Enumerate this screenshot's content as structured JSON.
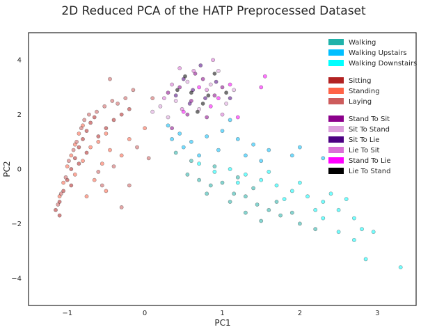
{
  "chart_data": {
    "type": "scatter",
    "title": "2D Reduced PCA of the HATP Preprocessed Dataset",
    "xlabel": "PC1",
    "ylabel": "PC2",
    "xlim": [
      -1.5,
      3.5
    ],
    "ylim": [
      -5,
      5
    ],
    "xticks": [
      -1,
      0,
      1,
      2,
      3
    ],
    "yticks": [
      -4,
      -2,
      0,
      2,
      4
    ],
    "grid": false,
    "legend_position": "top-right",
    "legend_groups": [
      [
        "Walking",
        "Walking Upstairs",
        "Walking Downstairs"
      ],
      [
        "Sitting",
        "Standing",
        "Laying"
      ],
      [
        "Stand To Sit",
        "Sit To Stand",
        "Sit To Lie",
        "Lie To Sit",
        "Stand To Lie",
        "Lie To Stand"
      ]
    ],
    "series": [
      {
        "name": "Walking",
        "color": "#20b2aa",
        "points": [
          [
            0.55,
            -0.2
          ],
          [
            0.7,
            -0.4
          ],
          [
            0.85,
            -0.6
          ],
          [
            1.0,
            -0.5
          ],
          [
            1.15,
            -0.9
          ],
          [
            1.3,
            -1.0
          ],
          [
            1.45,
            -1.3
          ],
          [
            1.6,
            -1.5
          ],
          [
            1.75,
            -1.7
          ],
          [
            0.6,
            0.3
          ],
          [
            0.9,
            0.1
          ],
          [
            1.2,
            -0.3
          ],
          [
            1.4,
            -0.7
          ],
          [
            1.7,
            -1.2
          ],
          [
            1.9,
            -1.6
          ],
          [
            0.4,
            0.6
          ],
          [
            0.8,
            -0.9
          ],
          [
            1.1,
            -1.2
          ],
          [
            1.3,
            -1.6
          ],
          [
            1.5,
            -1.9
          ],
          [
            2.0,
            -2.0
          ],
          [
            2.2,
            -2.2
          ]
        ]
      },
      {
        "name": "Walking Upstairs",
        "color": "#00bfff",
        "points": [
          [
            0.3,
            1.6
          ],
          [
            0.45,
            1.3
          ],
          [
            0.6,
            1.0
          ],
          [
            0.8,
            1.2
          ],
          [
            1.0,
            1.4
          ],
          [
            1.2,
            1.1
          ],
          [
            1.4,
            0.9
          ],
          [
            1.6,
            0.7
          ],
          [
            1.9,
            0.5
          ],
          [
            0.5,
            0.8
          ],
          [
            0.7,
            0.5
          ],
          [
            0.95,
            0.7
          ],
          [
            1.3,
            0.5
          ],
          [
            1.5,
            0.3
          ],
          [
            2.0,
            0.8
          ],
          [
            2.3,
            0.4
          ],
          [
            1.1,
            1.8
          ],
          [
            0.35,
            1.1
          ]
        ]
      },
      {
        "name": "Walking Downstairs",
        "color": "#00ffff",
        "points": [
          [
            0.7,
            0.2
          ],
          [
            0.9,
            -0.1
          ],
          [
            1.1,
            0.0
          ],
          [
            1.3,
            -0.2
          ],
          [
            1.5,
            -0.4
          ],
          [
            1.7,
            -0.6
          ],
          [
            1.9,
            -0.8
          ],
          [
            2.1,
            -1.0
          ],
          [
            2.3,
            -1.2
          ],
          [
            2.5,
            -1.5
          ],
          [
            2.7,
            -1.8
          ],
          [
            2.8,
            -2.2
          ],
          [
            2.95,
            -2.3
          ],
          [
            2.7,
            -2.6
          ],
          [
            2.85,
            -3.3
          ],
          [
            3.3,
            -3.6
          ],
          [
            2.5,
            -2.3
          ],
          [
            2.3,
            -1.8
          ],
          [
            1.8,
            -1.1
          ],
          [
            1.2,
            -0.5
          ],
          [
            1.6,
            -0.1
          ],
          [
            2.0,
            -0.5
          ],
          [
            2.4,
            -0.9
          ],
          [
            2.6,
            -1.1
          ],
          [
            2.2,
            -1.5
          ]
        ]
      },
      {
        "name": "Sitting",
        "color": "#b22222",
        "points": [
          [
            -1.1,
            -1.2
          ],
          [
            -1.05,
            -0.8
          ],
          [
            -1.0,
            -0.4
          ],
          [
            -0.95,
            0.0
          ],
          [
            -0.9,
            0.4
          ],
          [
            -0.85,
            0.8
          ],
          [
            -0.8,
            1.1
          ],
          [
            -0.75,
            1.4
          ],
          [
            -0.7,
            1.7
          ],
          [
            -0.65,
            1.9
          ],
          [
            -1.15,
            -1.5
          ],
          [
            -1.1,
            -1.7
          ],
          [
            -0.95,
            -0.6
          ],
          [
            -0.85,
            0.2
          ],
          [
            -0.75,
            0.6
          ],
          [
            -0.6,
            1.2
          ],
          [
            -0.5,
            1.5
          ],
          [
            -0.4,
            1.8
          ],
          [
            -0.3,
            2.0
          ],
          [
            -0.2,
            2.2
          ]
        ]
      },
      {
        "name": "Standing",
        "color": "#ff6347",
        "points": [
          [
            -1.1,
            -1.0
          ],
          [
            -1.05,
            -0.5
          ],
          [
            -1.0,
            0.1
          ],
          [
            -0.95,
            0.5
          ],
          [
            -0.9,
            0.9
          ],
          [
            -0.85,
            1.3
          ],
          [
            -0.8,
            1.6
          ],
          [
            -0.9,
            -0.2
          ],
          [
            -0.8,
            0.3
          ],
          [
            -0.7,
            0.8
          ],
          [
            -0.6,
            1.0
          ],
          [
            -0.5,
            1.3
          ],
          [
            -0.45,
            0.7
          ],
          [
            -0.55,
            0.2
          ],
          [
            -0.65,
            -0.4
          ],
          [
            -0.75,
            -1.0
          ],
          [
            -0.5,
            -0.8
          ],
          [
            -0.3,
            0.5
          ],
          [
            -0.2,
            1.1
          ],
          [
            0.0,
            1.5
          ]
        ]
      },
      {
        "name": "Laying",
        "color": "#cd5c5c",
        "points": [
          [
            -1.12,
            -1.3
          ],
          [
            -1.08,
            -0.9
          ],
          [
            -1.02,
            -0.3
          ],
          [
            -0.98,
            0.3
          ],
          [
            -0.92,
            0.7
          ],
          [
            -0.88,
            1.0
          ],
          [
            -0.82,
            1.5
          ],
          [
            -0.78,
            1.8
          ],
          [
            -0.72,
            2.0
          ],
          [
            -0.62,
            2.1
          ],
          [
            -0.52,
            2.3
          ],
          [
            -0.42,
            2.5
          ],
          [
            -0.35,
            2.4
          ],
          [
            -0.25,
            2.6
          ],
          [
            -0.15,
            2.9
          ],
          [
            -0.3,
            -1.4
          ],
          [
            -0.55,
            -0.6
          ],
          [
            -0.4,
            0.1
          ],
          [
            -0.1,
            0.8
          ],
          [
            0.05,
            0.4
          ],
          [
            0.1,
            2.6
          ],
          [
            -0.6,
            -0.1
          ],
          [
            -0.2,
            -0.6
          ],
          [
            -0.45,
            3.3
          ]
        ]
      },
      {
        "name": "Stand To Sit",
        "color": "#8b008b",
        "points": [
          [
            0.3,
            2.8
          ],
          [
            0.45,
            3.0
          ],
          [
            0.6,
            2.5
          ],
          [
            0.75,
            3.3
          ],
          [
            0.9,
            2.7
          ],
          [
            1.0,
            3.0
          ],
          [
            0.55,
            2.0
          ],
          [
            0.35,
            1.5
          ],
          [
            0.8,
            1.9
          ],
          [
            0.65,
            3.5
          ]
        ]
      },
      {
        "name": "Sit To Stand",
        "color": "#dda0dd",
        "points": [
          [
            0.2,
            2.3
          ],
          [
            0.4,
            2.5
          ],
          [
            0.55,
            3.2
          ],
          [
            0.7,
            2.2
          ],
          [
            0.85,
            3.1
          ],
          [
            1.05,
            2.4
          ],
          [
            0.3,
            1.9
          ],
          [
            0.1,
            2.1
          ],
          [
            0.95,
            3.6
          ],
          [
            1.15,
            2.9
          ]
        ]
      },
      {
        "name": "Sit To Lie",
        "color": "#4b0082",
        "points": [
          [
            0.4,
            2.7
          ],
          [
            0.5,
            3.3
          ],
          [
            0.62,
            2.9
          ],
          [
            0.78,
            2.6
          ],
          [
            0.92,
            3.2
          ],
          [
            0.72,
            3.8
          ],
          [
            0.58,
            2.4
          ],
          [
            1.1,
            2.6
          ]
        ]
      },
      {
        "name": "Lie To Sit",
        "color": "#da70d6",
        "points": [
          [
            0.35,
            3.1
          ],
          [
            0.48,
            2.2
          ],
          [
            0.63,
            3.6
          ],
          [
            0.8,
            2.9
          ],
          [
            1.0,
            2.0
          ],
          [
            0.45,
            3.7
          ],
          [
            0.25,
            2.6
          ],
          [
            0.88,
            4.0
          ]
        ]
      },
      {
        "name": "Stand To Lie",
        "color": "#ff00ff",
        "points": [
          [
            0.5,
            2.1
          ],
          [
            0.7,
            3.0
          ],
          [
            0.85,
            2.3
          ],
          [
            1.1,
            3.1
          ],
          [
            1.5,
            3.0
          ],
          [
            1.55,
            3.4
          ],
          [
            1.2,
            1.9
          ],
          [
            0.95,
            2.6
          ]
        ]
      },
      {
        "name": "Lie To Stand",
        "color": "#000000",
        "points": [
          [
            0.42,
            2.9
          ],
          [
            0.6,
            2.8
          ],
          [
            0.75,
            2.4
          ],
          [
            0.9,
            3.5
          ],
          [
            0.68,
            2.1
          ],
          [
            1.05,
            2.8
          ],
          [
            0.52,
            3.4
          ],
          [
            0.82,
            2.7
          ]
        ]
      }
    ]
  }
}
